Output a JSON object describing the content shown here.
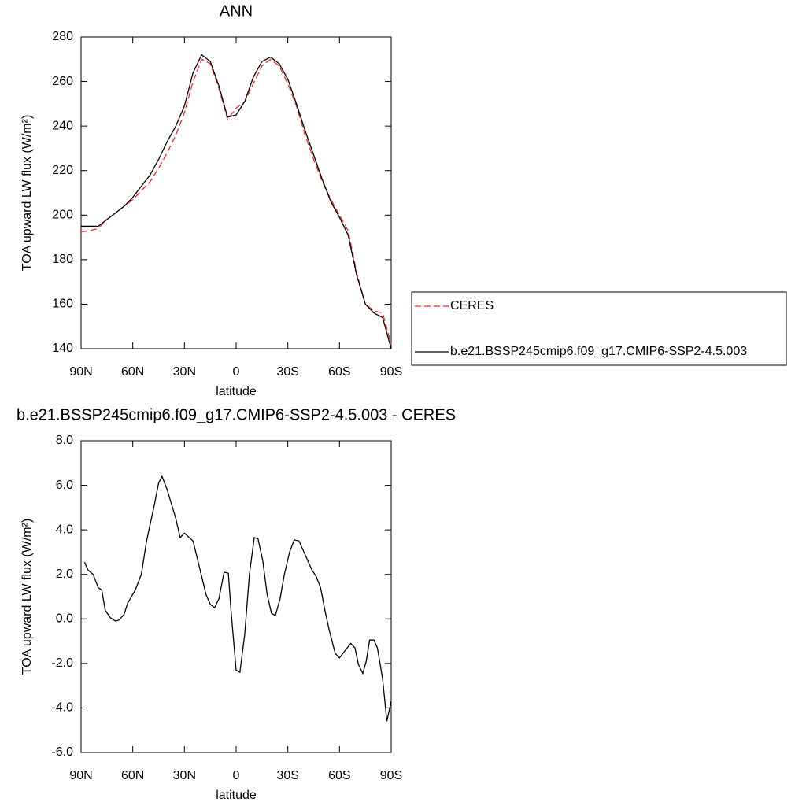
{
  "chart_data": [
    {
      "type": "line",
      "title": "ANN",
      "xlabel": "latitude",
      "ylabel": "TOA upward LW flux (W/m²)",
      "x": [
        90,
        85,
        80,
        75,
        70,
        65,
        60,
        55,
        50,
        45,
        40,
        35,
        30,
        25,
        20,
        15,
        10,
        5,
        0,
        -5,
        -10,
        -15,
        -20,
        -25,
        -30,
        -35,
        -40,
        -45,
        -50,
        -55,
        -60,
        -65,
        -70,
        -75,
        -80,
        -85,
        -90
      ],
      "series": [
        {
          "name": "CERES",
          "color": "#ff2020",
          "linestyle": "dashed",
          "values": [
            192.5,
            193,
            194,
            198,
            201,
            204,
            207,
            211,
            215,
            221,
            228,
            236,
            246,
            260,
            270,
            268,
            257,
            243,
            248,
            251,
            259,
            267,
            270,
            267,
            259,
            249,
            236,
            225,
            215,
            207,
            200,
            193,
            174,
            160,
            157,
            156,
            142
          ]
        },
        {
          "name": "b.e21.BSSP245cmip6.f09_g17.CMIP6-SSP2-4.5.003",
          "color": "#000000",
          "linestyle": "solid",
          "values": [
            195,
            195,
            195,
            198,
            201,
            204,
            208,
            213,
            218,
            225,
            233,
            240,
            249,
            264,
            272,
            269,
            258,
            244,
            245,
            251,
            262,
            269,
            271,
            268,
            261,
            250,
            238,
            227,
            216,
            206,
            199,
            191,
            173,
            160,
            156,
            154,
            140
          ]
        }
      ],
      "xlim": [
        90,
        -90
      ],
      "xticks": [
        {
          "value": 90,
          "label": "90N"
        },
        {
          "value": 60,
          "label": "60N"
        },
        {
          "value": 30,
          "label": "30N"
        },
        0,
        {
          "value": -30,
          "label": "30S"
        },
        {
          "value": -60,
          "label": "60S"
        },
        {
          "value": -90,
          "label": "90S"
        }
      ],
      "ylim": [
        140,
        280
      ],
      "yticks": [
        140,
        160,
        180,
        200,
        220,
        240,
        260,
        280
      ],
      "legend": "outside-right"
    },
    {
      "type": "line",
      "title": "b.e21.BSSP245cmip6.f09_g17.CMIP6-SSP2-4.5.003 - CERES",
      "xlabel": "latitude",
      "ylabel": "TOA upward LW flux (W/m²)",
      "x": [
        88,
        86,
        83,
        80,
        78,
        76,
        73,
        70,
        68,
        65,
        63,
        58.5,
        55,
        52,
        47.5,
        45,
        43,
        40,
        35,
        32.5,
        30,
        25,
        22.5,
        17.5,
        15,
        12.5,
        10,
        7,
        4.5,
        2.8,
        0,
        -2.2,
        -5,
        -7.7,
        -10.5,
        -12.7,
        -15.5,
        -18,
        -20.5,
        -22.8,
        -25.5,
        -28,
        -31,
        -33.7,
        -36.5,
        -38.8,
        -44,
        -46.5,
        -49,
        -51.5,
        -54,
        -57.5,
        -60,
        -63.5,
        -66.5,
        -69,
        -71,
        -73.5,
        -75.5,
        -77.5,
        -80,
        -82,
        -85,
        -87.5,
        -90
      ],
      "series": [
        {
          "name": "b.e21.BSSP245cmip6.f09_g17.CMIP6-SSP2-4.5.003 - CERES",
          "color": "#000000",
          "linestyle": "solid",
          "values": [
            2.55,
            2.2,
            2.0,
            1.4,
            1.3,
            0.4,
            0.05,
            -0.1,
            -0.05,
            0.2,
            0.7,
            1.3,
            2.0,
            3.5,
            5.1,
            6.1,
            6.4,
            5.8,
            4.5,
            3.65,
            3.85,
            3.5,
            2.7,
            1.1,
            0.65,
            0.5,
            0.9,
            2.1,
            2.05,
            0.2,
            -2.3,
            -2.4,
            -0.7,
            2.0,
            3.65,
            3.6,
            2.6,
            1.1,
            0.25,
            0.15,
            0.9,
            2.0,
            3.0,
            3.55,
            3.5,
            3.1,
            2.2,
            1.9,
            1.4,
            0.4,
            -0.5,
            -1.55,
            -1.75,
            -1.4,
            -1.1,
            -1.3,
            -2.05,
            -2.45,
            -1.9,
            -0.95,
            -0.95,
            -1.3,
            -2.7,
            -4.6,
            -3.7
          ]
        }
      ],
      "xlim": [
        90,
        -90
      ],
      "xticks": [
        {
          "value": 90,
          "label": "90N"
        },
        {
          "value": 60,
          "label": "60N"
        },
        {
          "value": 30,
          "label": "30N"
        },
        0,
        {
          "value": -30,
          "label": "30S"
        },
        {
          "value": -60,
          "label": "60S"
        },
        {
          "value": -90,
          "label": "90S"
        }
      ],
      "ylim": [
        -6,
        8
      ],
      "yticks": [
        {
          "value": -6,
          "label": "-6.0"
        },
        {
          "value": -4,
          "label": "-4.0"
        },
        {
          "value": -2,
          "label": "-2.0"
        },
        {
          "value": 0,
          "label": "0.0"
        },
        {
          "value": 2,
          "label": "2.0"
        },
        {
          "value": 4,
          "label": "4.0"
        },
        {
          "value": 6,
          "label": "6.0"
        },
        {
          "value": 8,
          "label": "8.0"
        }
      ]
    }
  ]
}
